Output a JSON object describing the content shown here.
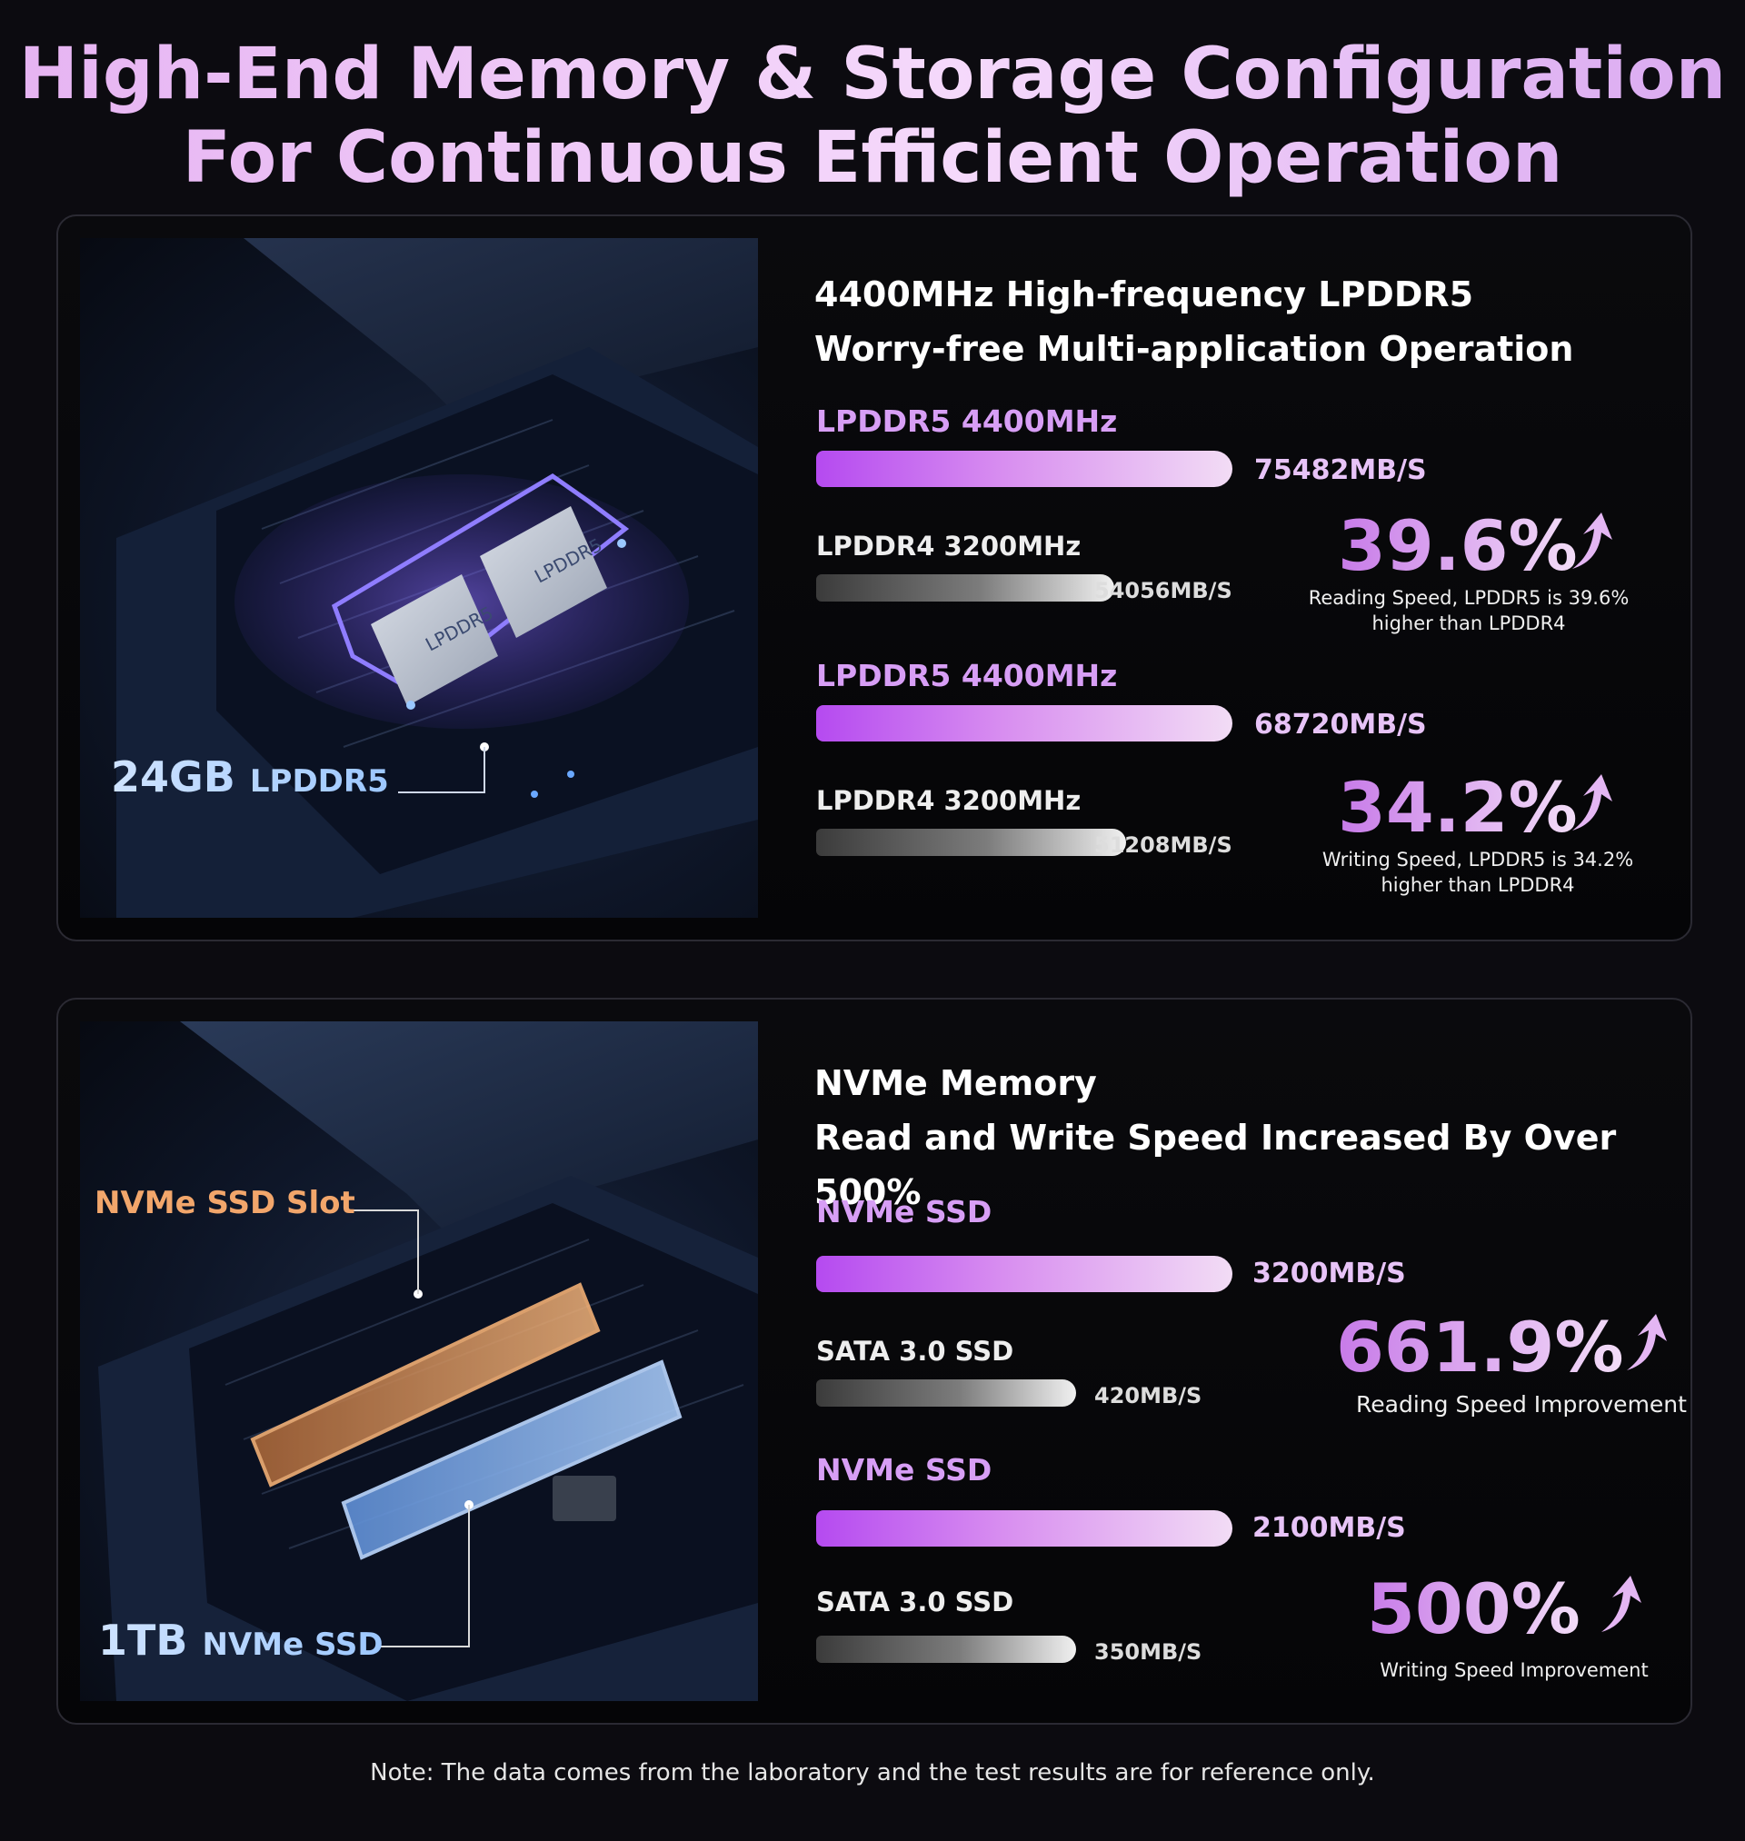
{
  "headline": {
    "line1": "High-End Memory & Storage Configuration",
    "line2": "For Continuous Efficient Operation"
  },
  "memory": {
    "photo": {
      "callout_size": "24GB",
      "callout_type": "LPDDR5",
      "chip_label_1": "LPDDR5",
      "chip_label_2": "LPDDR5"
    },
    "title_line1": "4400MHz High-frequency LPDDR5",
    "title_line2": "Worry-free Multi-application Operation",
    "read": {
      "a_label": "LPDDR5 4400MHz",
      "a_value": "75482MB/S",
      "a_number": 75482,
      "b_label": "LPDDR4 3200MHz",
      "b_value": "54056MB/S",
      "b_number": 54056,
      "pct": "39.6%",
      "note": "Reading Speed, LPDDR5 is 39.6% higher than LPDDR4"
    },
    "write": {
      "a_label": "LPDDR5 4400MHz",
      "a_value": "68720MB/S",
      "a_number": 68720,
      "b_label": "LPDDR4 3200MHz",
      "b_value": "51208MB/S",
      "b_number": 51208,
      "pct": "34.2%",
      "note": "Writing Speed, LPDDR5 is 34.2% higher than LPDDR4"
    }
  },
  "storage": {
    "photo": {
      "slot_callout": "NVMe SSD Slot",
      "callout_size": "1TB",
      "callout_type": "NVMe SSD"
    },
    "title_line1": "NVMe Memory",
    "title_line2": "Read and Write Speed Increased By Over 500%",
    "read": {
      "a_label": "NVMe SSD",
      "a_value": "3200MB/S",
      "a_number": 3200,
      "b_label": "SATA 3.0 SSD",
      "b_value": "420MB/S",
      "b_number": 420,
      "pct": "661.9%",
      "note": "Reading Speed Improvement"
    },
    "write": {
      "a_label": "NVMe SSD",
      "a_value": "2100MB/S",
      "a_number": 2100,
      "b_label": "SATA 3.0 SSD",
      "b_value": "350MB/S",
      "b_number": 350,
      "pct": "500%",
      "note": "Writing Speed Improvement"
    }
  },
  "footnote": "Note: The data comes from the laboratory and the test results are for reference only.",
  "colors": {
    "accent_purple": "#b54af0",
    "accent_orange": "#f2a66b",
    "accent_blue": "#9cc7ff",
    "background": "#0c0b10"
  }
}
